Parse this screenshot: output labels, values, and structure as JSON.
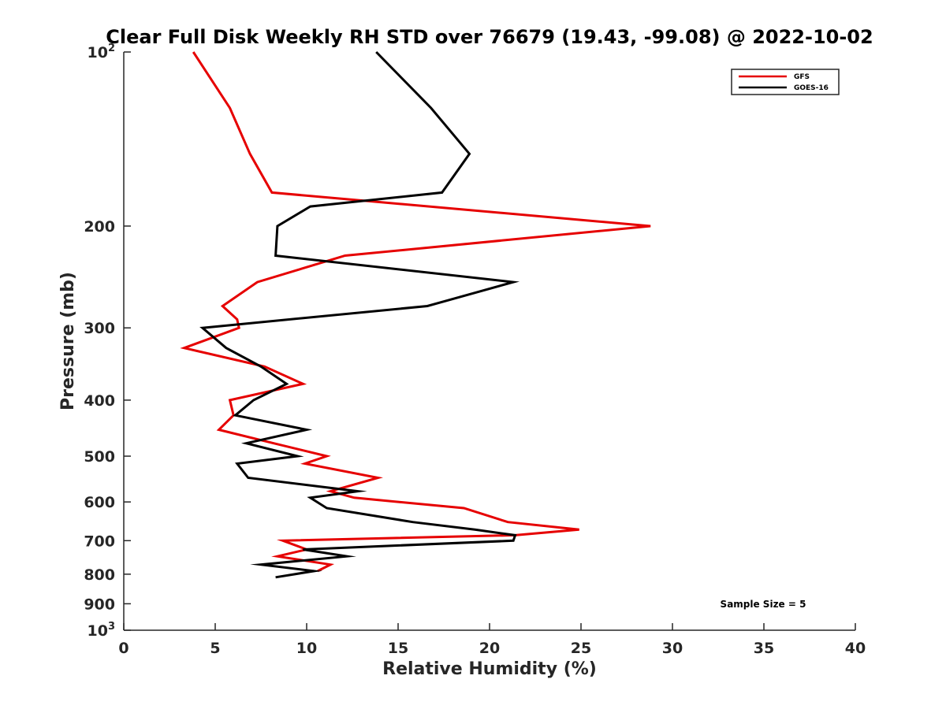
{
  "chart_data": {
    "type": "line",
    "title": "Clear Full Disk Weekly RH STD over 76679 (19.43, -99.08) @ 2022-10-02",
    "xlabel": "Relative Humidity (%)",
    "ylabel": "Pressure (mb)",
    "xlim": [
      0,
      40
    ],
    "ylim": [
      100,
      1000
    ],
    "yscale": "log",
    "yreversed": true,
    "grid": false,
    "legend_position": "top-right",
    "xticks": [
      {
        "value": 0,
        "label": "0"
      },
      {
        "value": 5,
        "label": "5"
      },
      {
        "value": 10,
        "label": "10"
      },
      {
        "value": 15,
        "label": "15"
      },
      {
        "value": 20,
        "label": "20"
      },
      {
        "value": 25,
        "label": "25"
      },
      {
        "value": 30,
        "label": "30"
      },
      {
        "value": 35,
        "label": "35"
      },
      {
        "value": 40,
        "label": "40"
      }
    ],
    "yticks": [
      {
        "value": 100,
        "base": "10",
        "exp": "2"
      },
      {
        "value": 200,
        "label": "200"
      },
      {
        "value": 300,
        "label": "300"
      },
      {
        "value": 400,
        "label": "400"
      },
      {
        "value": 500,
        "label": "500"
      },
      {
        "value": 600,
        "label": "600"
      },
      {
        "value": 700,
        "label": "700"
      },
      {
        "value": 800,
        "label": "800"
      },
      {
        "value": 900,
        "label": "900"
      },
      {
        "value": 1000,
        "base": "10",
        "exp": "3"
      }
    ],
    "series": [
      {
        "name": "GFS",
        "color": "#e60000",
        "points": [
          {
            "p": 100,
            "rh": 3.8
          },
          {
            "p": 125,
            "rh": 5.8
          },
          {
            "p": 150,
            "rh": 6.9
          },
          {
            "p": 175,
            "rh": 8.1
          },
          {
            "p": 200,
            "rh": 28.8
          },
          {
            "p": 225,
            "rh": 12.1
          },
          {
            "p": 250,
            "rh": 7.3
          },
          {
            "p": 275,
            "rh": 5.4
          },
          {
            "p": 290,
            "rh": 6.2
          },
          {
            "p": 300,
            "rh": 6.3
          },
          {
            "p": 325,
            "rh": 3.3
          },
          {
            "p": 350,
            "rh": 7.7
          },
          {
            "p": 375,
            "rh": 9.8
          },
          {
            "p": 400,
            "rh": 5.8
          },
          {
            "p": 425,
            "rh": 6.0
          },
          {
            "p": 450,
            "rh": 5.2
          },
          {
            "p": 475,
            "rh": 8.2
          },
          {
            "p": 500,
            "rh": 11.1
          },
          {
            "p": 515,
            "rh": 9.9
          },
          {
            "p": 545,
            "rh": 13.9
          },
          {
            "p": 575,
            "rh": 11.3
          },
          {
            "p": 590,
            "rh": 12.6
          },
          {
            "p": 615,
            "rh": 18.6
          },
          {
            "p": 650,
            "rh": 21.0
          },
          {
            "p": 670,
            "rh": 24.9
          },
          {
            "p": 685,
            "rh": 21.4
          },
          {
            "p": 700,
            "rh": 8.7
          },
          {
            "p": 725,
            "rh": 10.0
          },
          {
            "p": 745,
            "rh": 8.4
          },
          {
            "p": 770,
            "rh": 11.3
          },
          {
            "p": 790,
            "rh": 10.6
          }
        ]
      },
      {
        "name": "GOES-16",
        "color": "#000000",
        "points": [
          {
            "p": 100,
            "rh": 13.8
          },
          {
            "p": 125,
            "rh": 16.8
          },
          {
            "p": 150,
            "rh": 18.9
          },
          {
            "p": 175,
            "rh": 17.4
          },
          {
            "p": 185,
            "rh": 10.2
          },
          {
            "p": 200,
            "rh": 8.4
          },
          {
            "p": 225,
            "rh": 8.3
          },
          {
            "p": 250,
            "rh": 21.3
          },
          {
            "p": 275,
            "rh": 16.6
          },
          {
            "p": 300,
            "rh": 4.3
          },
          {
            "p": 325,
            "rh": 5.6
          },
          {
            "p": 350,
            "rh": 7.5
          },
          {
            "p": 375,
            "rh": 8.9
          },
          {
            "p": 400,
            "rh": 7.1
          },
          {
            "p": 425,
            "rh": 6.1
          },
          {
            "p": 450,
            "rh": 10.0
          },
          {
            "p": 475,
            "rh": 6.7
          },
          {
            "p": 500,
            "rh": 9.5
          },
          {
            "p": 515,
            "rh": 6.2
          },
          {
            "p": 545,
            "rh": 6.8
          },
          {
            "p": 575,
            "rh": 12.8
          },
          {
            "p": 590,
            "rh": 10.2
          },
          {
            "p": 615,
            "rh": 11.1
          },
          {
            "p": 650,
            "rh": 15.8
          },
          {
            "p": 670,
            "rh": 19.2
          },
          {
            "p": 685,
            "rh": 21.4
          },
          {
            "p": 700,
            "rh": 21.3
          },
          {
            "p": 725,
            "rh": 9.8
          },
          {
            "p": 745,
            "rh": 12.2
          },
          {
            "p": 770,
            "rh": 7.5
          },
          {
            "p": 790,
            "rh": 10.4
          },
          {
            "p": 810,
            "rh": 8.3
          }
        ]
      }
    ],
    "annotation": "Sample Size = 5"
  }
}
